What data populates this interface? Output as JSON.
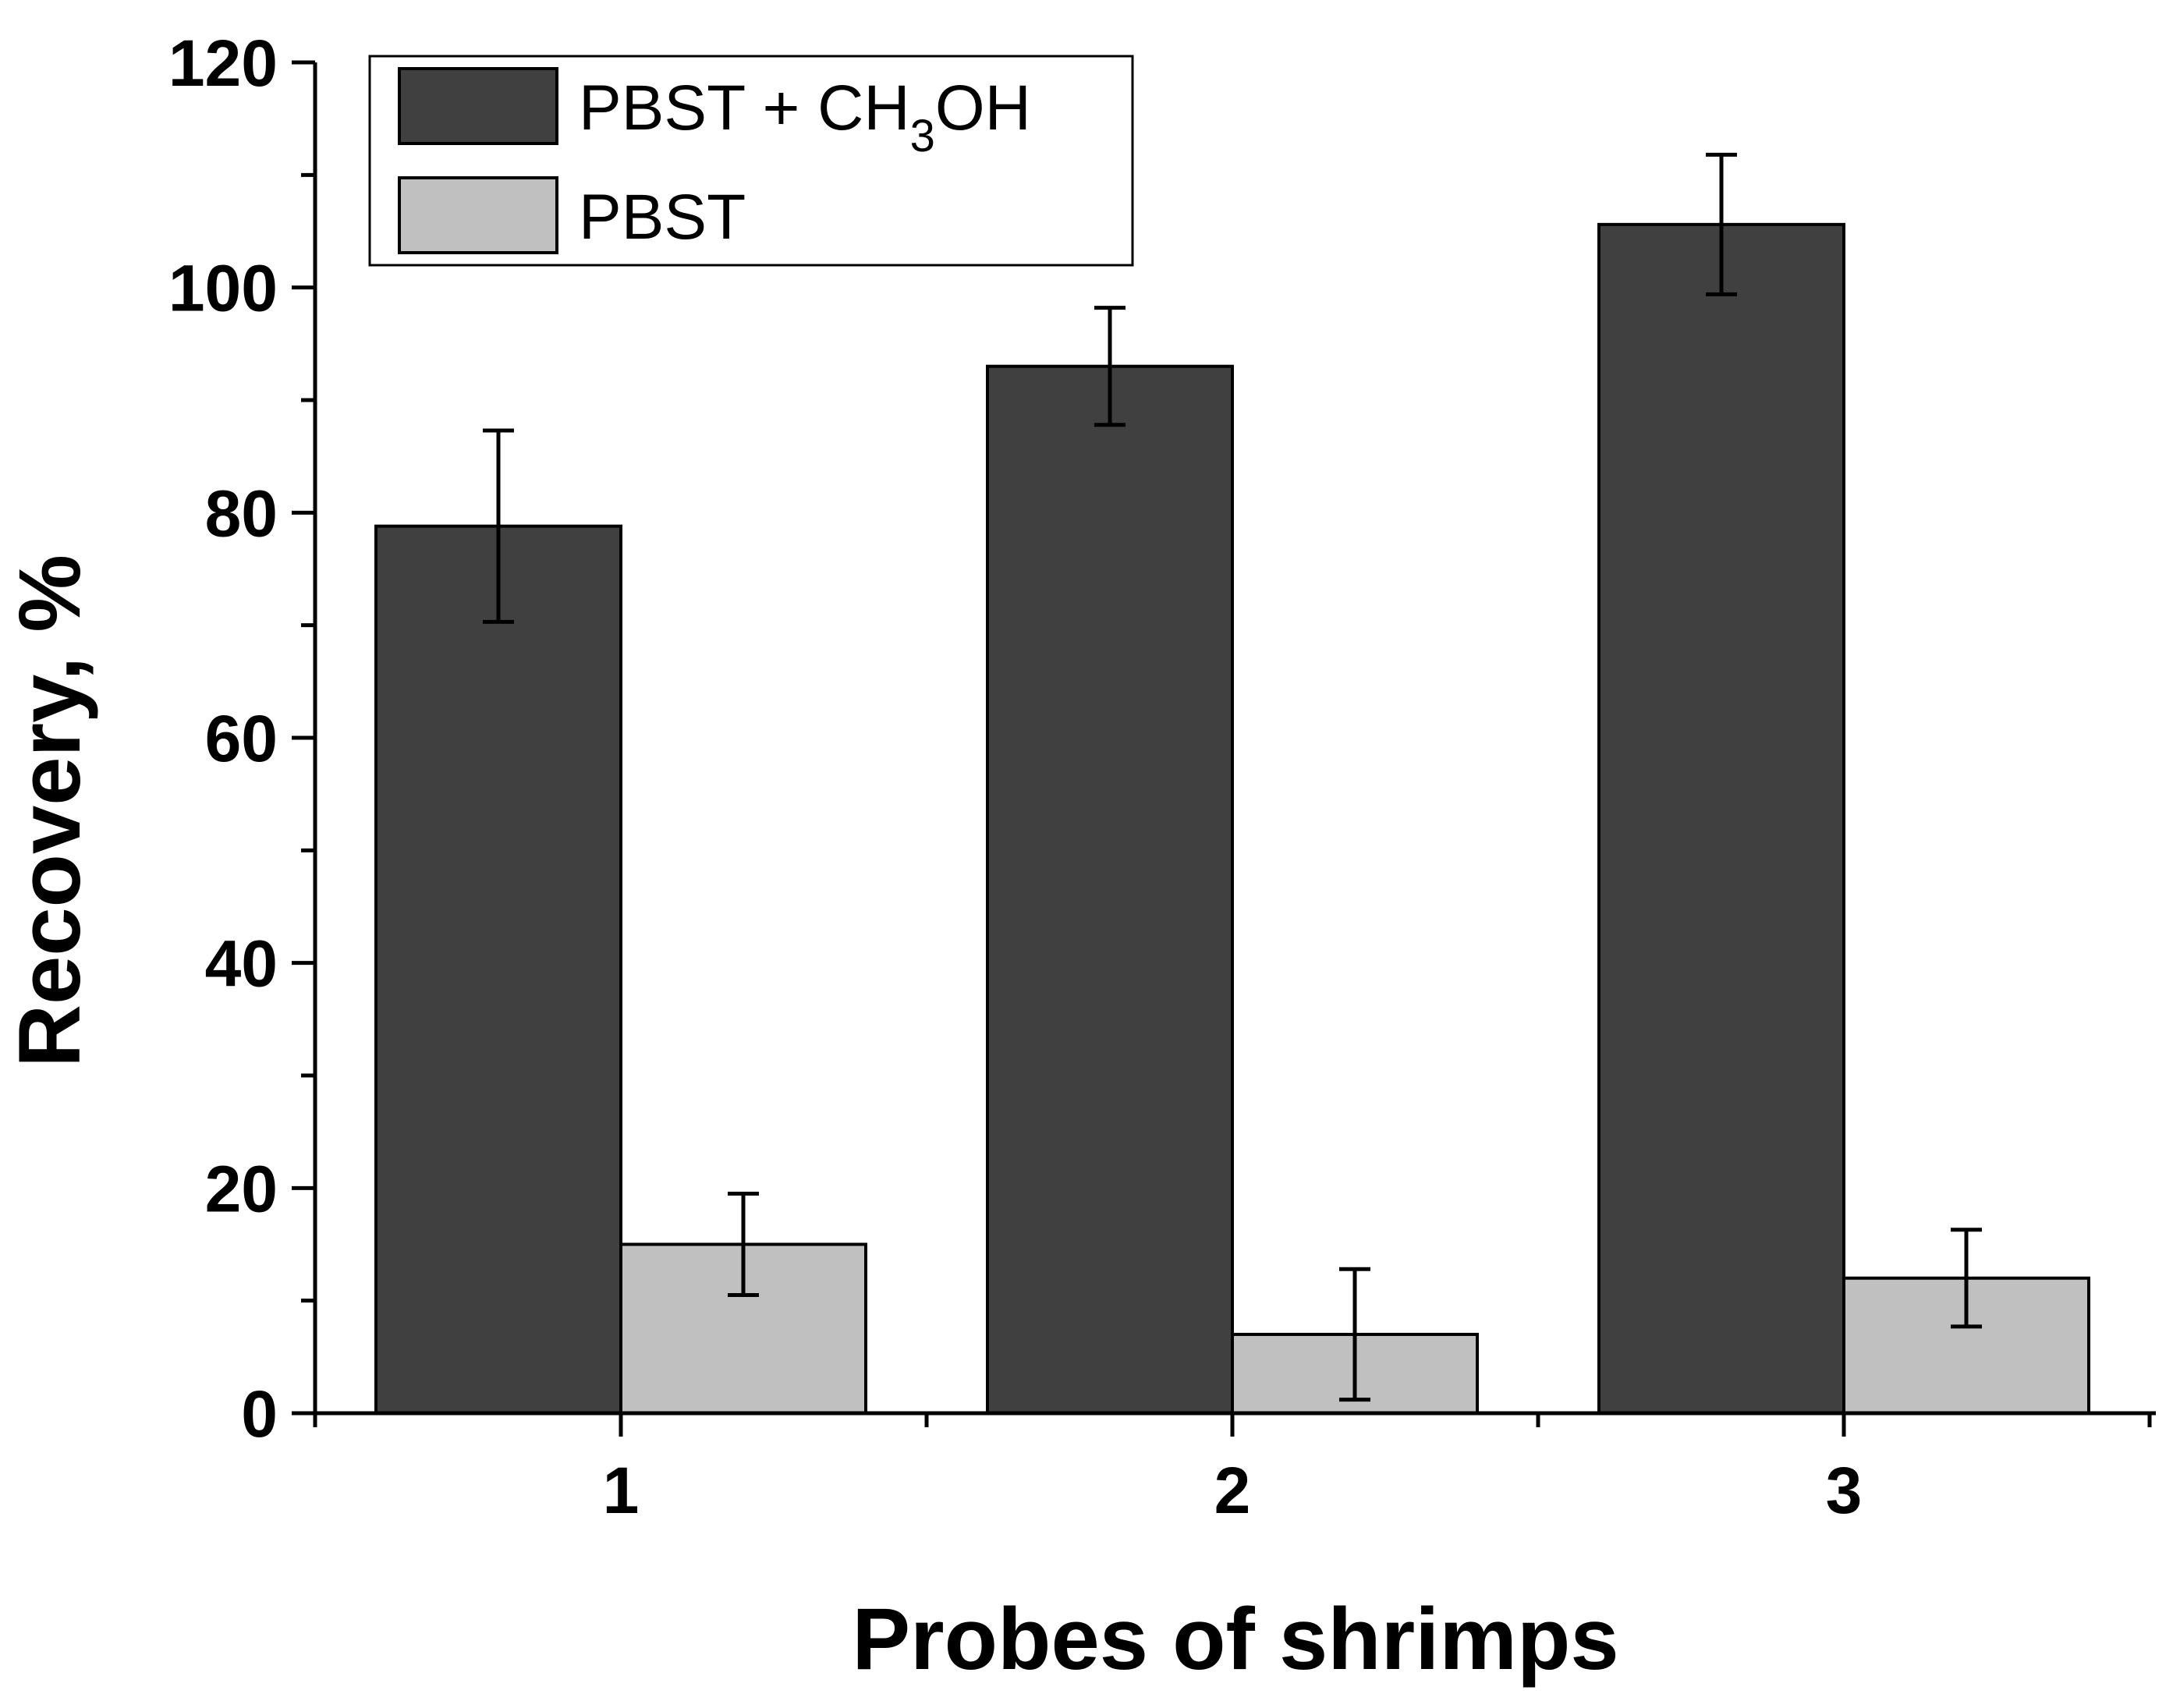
{
  "chart_data": {
    "type": "bar",
    "title": "",
    "xlabel": "Probes of shrimps",
    "ylabel": "Recovery, %",
    "categories": [
      "1",
      "2",
      "3"
    ],
    "ylim": [
      0,
      120
    ],
    "yticks": [
      "0",
      "20",
      "40",
      "60",
      "80",
      "100",
      "120"
    ],
    "y_minor_step": 10,
    "grid": false,
    "legend_position": "top-left",
    "series": [
      {
        "name": "PBST + CH3OH",
        "label_main": "PBST + CH",
        "label_sub": "3",
        "label_tail": "OH",
        "color": "#404040",
        "values": [
          78.8,
          93.0,
          105.6
        ],
        "errors": [
          8.5,
          5.2,
          6.2
        ]
      },
      {
        "name": "PBST",
        "color": "#c0c0c0",
        "values": [
          15.0,
          7.0,
          12.0
        ],
        "errors": [
          4.5,
          5.8,
          4.3
        ]
      }
    ]
  }
}
